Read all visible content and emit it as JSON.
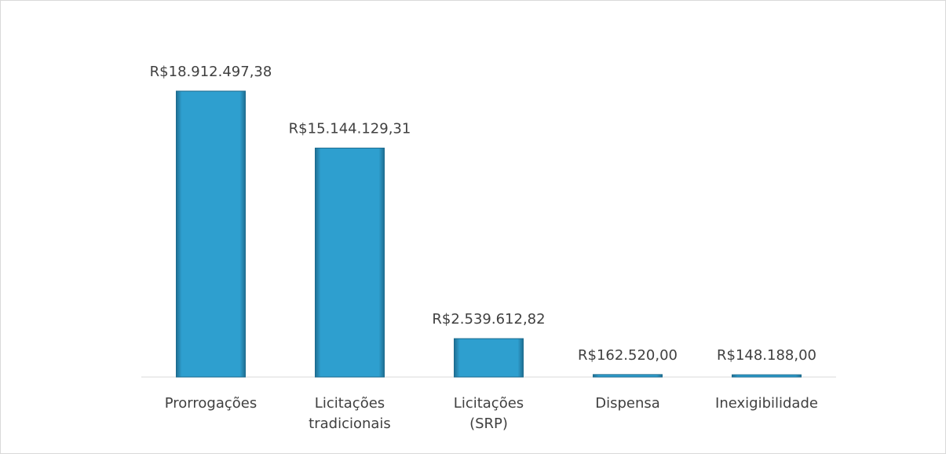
{
  "chart_data": {
    "type": "bar",
    "categories": [
      "Prorrogações",
      "Licitações tradicionais",
      "Licitações (SRP)",
      "Dispensa",
      "Inexigibilidade"
    ],
    "values": [
      18912497.38,
      15144129.31,
      2539612.82,
      162520.0,
      148188.0
    ],
    "value_labels": [
      "R$18.912.497,38",
      "R$15.144.129,31",
      "R$2.539.612,82",
      "R$162.520,00",
      "R$148.188,00"
    ],
    "color": "#2e9fcf"
  }
}
